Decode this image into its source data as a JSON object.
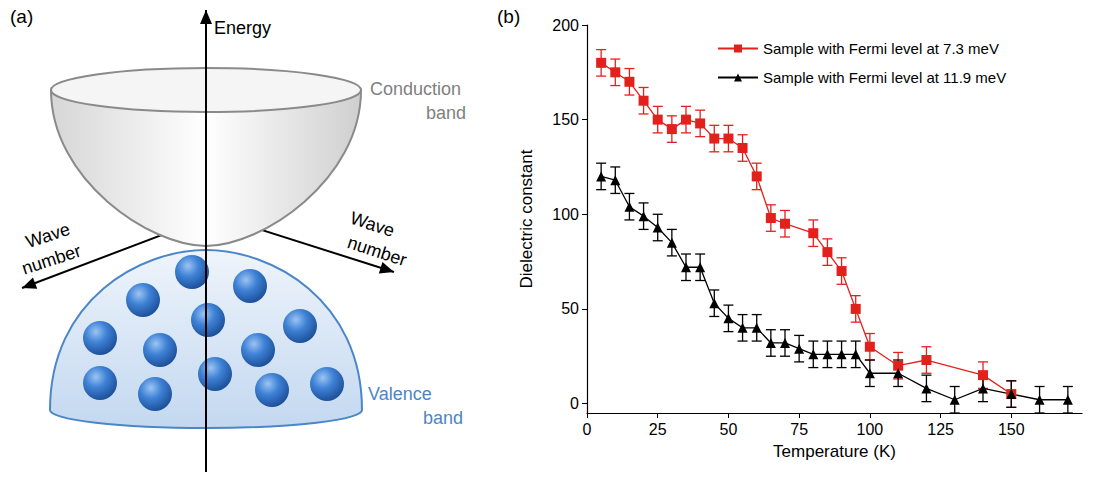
{
  "diagram": {
    "label": "(a)",
    "axis_label": "Energy",
    "wave_number_labels": [
      "Wave number",
      "Wave number"
    ],
    "conduction_band": "Conduction band",
    "valence_band": "Valence band"
  },
  "chart_data": {
    "type": "line",
    "annotation": "(b)",
    "x_label": "Temperature (K)",
    "y_label": "Dielectric constant",
    "xlim": [
      0,
      175
    ],
    "xticks": [
      0,
      25,
      50,
      75,
      100,
      125,
      150
    ],
    "ylim": [
      -5,
      200
    ],
    "yticks": [
      0,
      50,
      100,
      150,
      200
    ],
    "grid": false,
    "legend": "upper right",
    "series": [
      {
        "name": "Sample with Fermi level at 7.3 meV",
        "color": "#e3211c",
        "marker": "square",
        "line_style": "solid",
        "x": [
          5,
          10,
          15,
          20,
          25,
          30,
          35,
          40,
          45,
          50,
          55,
          60,
          65,
          70,
          80,
          85,
          90,
          95,
          100,
          110,
          120,
          140,
          150
        ],
        "values": [
          180,
          175,
          170,
          160,
          150,
          145,
          150,
          148,
          140,
          140,
          135,
          120,
          98,
          95,
          90,
          80,
          70,
          50,
          30,
          20,
          23,
          15,
          5
        ],
        "errors": [
          7,
          7,
          7,
          7,
          7,
          7,
          7,
          7,
          7,
          7,
          7,
          7,
          7,
          7,
          7,
          7,
          7,
          7,
          7,
          7,
          7,
          7,
          7
        ]
      },
      {
        "name": "Sample with Fermi level at 11.9 meV",
        "color": "#000000",
        "marker": "triangle",
        "line_style": "solid",
        "x": [
          5,
          10,
          15,
          20,
          25,
          30,
          35,
          40,
          45,
          50,
          55,
          60,
          65,
          70,
          75,
          80,
          85,
          90,
          95,
          100,
          110,
          120,
          130,
          140,
          150,
          160,
          170
        ],
        "values": [
          120,
          118,
          104,
          99,
          93,
          85,
          72,
          72,
          53,
          45,
          40,
          40,
          32,
          32,
          29,
          26,
          26,
          26,
          26,
          16,
          16,
          8,
          2,
          8,
          5,
          2,
          2
        ],
        "errors": [
          7,
          7,
          7,
          7,
          7,
          7,
          7,
          7,
          7,
          7,
          7,
          7,
          7,
          7,
          7,
          7,
          7,
          7,
          7,
          7,
          7,
          7,
          7,
          7,
          7,
          7,
          7
        ]
      }
    ]
  }
}
